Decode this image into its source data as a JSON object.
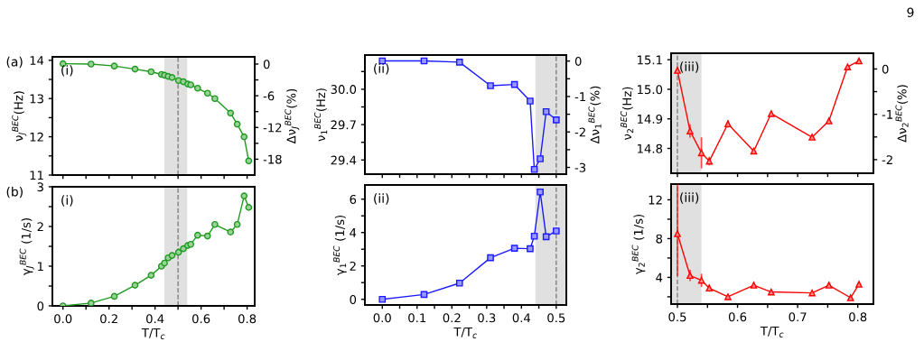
{
  "chart_data": [
    {
      "type": "line",
      "ylabel": "ν$_{J}$$^{BEC}$(Hz)",
      "y2label": "Δν$_{J}$$^{BEC}$(%)",
      "annotations": [
        "(a)",
        "(i)"
      ],
      "marker": "circle",
      "tick_labels": "y",
      "grid": false,
      "x": [
        0,
        0.122,
        0.223,
        0.313,
        0.383,
        0.428,
        0.441,
        0.457,
        0.474,
        0.502,
        0.523,
        0.542,
        0.555,
        0.585,
        0.628,
        0.66,
        0.728,
        0.757,
        0.787,
        0.807
      ],
      "series": [
        {
          "color": "#1e9a1e",
          "values": [
            13.91,
            13.9,
            13.85,
            13.77,
            13.7,
            13.63,
            13.61,
            13.58,
            13.55,
            13.47,
            13.44,
            13.38,
            13.36,
            13.27,
            13.14,
            13.0,
            12.62,
            12.33,
            12.0,
            11.37
          ]
        }
      ],
      "xlim": [
        -0.046,
        0.833
      ],
      "xticks": [
        0,
        0.1,
        0.2,
        0.3,
        0.4,
        0.5,
        0.6,
        0.7,
        0.8
      ],
      "ylim": [
        11,
        14.09
      ],
      "yticks": [
        11,
        {
          "value": 11.5,
          "label": null
        },
        12,
        {
          "value": 12.5,
          "label": null
        },
        13,
        {
          "value": 13.5,
          "label": null
        },
        14
      ],
      "y2lim": [
        -21.0,
        1.36
      ],
      "y2ticks": [
        0,
        {
          "value": -3,
          "label": null
        },
        -6,
        {
          "value": -9,
          "label": null
        },
        -12,
        {
          "value": -15,
          "label": null
        },
        -18
      ],
      "bands": [
        {
          "axis": "x",
          "from": 0.44,
          "to": 0.54,
          "color": "#e0e0e0"
        }
      ],
      "ref_lines": [
        {
          "axis": "x",
          "value": 0.5,
          "color": "#808080",
          "line_style": "dashed"
        }
      ]
    },
    {
      "type": "line",
      "ylabel": "ν$_{1}$$^{BEC}$(Hz)",
      "y2label": "Δν$_{1}$$^{BEC}$(%)",
      "annotations": [
        "(ii)"
      ],
      "marker": "square",
      "tick_labels": "y",
      "grid": false,
      "x": [
        0,
        0.12,
        0.222,
        0.311,
        0.38,
        0.425,
        0.437,
        0.454,
        0.471,
        0.5
      ],
      "series": [
        {
          "color": "#1a1aff",
          "values": [
            30.24,
            30.24,
            30.23,
            30.03,
            30.04,
            29.9,
            29.32,
            29.41,
            29.81,
            29.74
          ]
        }
      ],
      "xlim": [
        -0.05,
        0.529
      ],
      "xticks": [
        0,
        0.05,
        0.1,
        0.15,
        0.2,
        0.25,
        0.3,
        0.35,
        0.4,
        0.45,
        0.5
      ],
      "ylim": [
        29.28,
        30.29
      ],
      "yticks": [
        29.4,
        {
          "value": 29.55,
          "label": null
        },
        29.7,
        {
          "value": 29.85,
          "label": null
        },
        {
          "value": 30,
          "label": "30.0"
        },
        {
          "value": 30.15,
          "label": null
        }
      ],
      "y2lim": [
        -3.19,
        0.17
      ],
      "y2ticks": [
        0,
        {
          "value": -0.5,
          "label": null
        },
        -1,
        {
          "value": -1.5,
          "label": null
        },
        -2,
        {
          "value": -2.5,
          "label": null
        },
        -3
      ],
      "bands": [
        {
          "axis": "x",
          "from": 0.44,
          "to": 0.529,
          "color": "#e0e0e0"
        }
      ],
      "ref_lines": [
        {
          "axis": "x",
          "value": 0.5,
          "color": "#808080",
          "line_style": "dashed"
        }
      ]
    },
    {
      "type": "line",
      "ylabel": "ν$_{2}$$^{BEC}$(Hz)",
      "y2label": "Δν$_{2}$$^{BEC}$(%)",
      "annotations": [
        "9",
        "(iii)"
      ],
      "marker": "triangle",
      "tick_labels": "y",
      "grid": false,
      "x": [
        0.5,
        0.521,
        0.54,
        0.553,
        0.584,
        0.627,
        0.656,
        0.724,
        0.752,
        0.783,
        0.802
      ],
      "series": [
        {
          "color": "#ff0000",
          "values": [
            15.064,
            14.859,
            14.785,
            14.757,
            14.883,
            14.791,
            14.918,
            14.838,
            14.893,
            15.076,
            15.096
          ],
          "errors": [
            0.01,
            0.02,
            [
              14.735,
              14.835
            ],
            0.012,
            0.01,
            null,
            null,
            null,
            null,
            null,
            null
          ]
        }
      ],
      "xlim": [
        0.4895,
        0.826
      ],
      "xticks": [
        0.5,
        0.55,
        0.6,
        0.65,
        0.7,
        0.75,
        0.8
      ],
      "ylim": [
        14.716,
        15.122
      ],
      "yticks": [
        14.8,
        14.9,
        {
          "value": 15,
          "label": "15.0"
        },
        15.1
      ],
      "y2lim": [
        -2.3,
        0.347
      ],
      "y2ticks": [
        0,
        {
          "value": -0.5,
          "label": null
        },
        -1,
        {
          "value": -1.5,
          "label": null
        },
        -2
      ],
      "bands": [
        {
          "axis": "x",
          "from": 0.4895,
          "to": 0.54,
          "color": "#e0e0e0"
        }
      ],
      "ref_lines": [
        {
          "axis": "x",
          "value": 0.5,
          "color": "#808080",
          "line_style": "dashed"
        }
      ]
    },
    {
      "type": "line",
      "ylabel": "γ$_{J}$$^{BEC}$ (1/s)",
      "xlabel": "T/T$_{c}$",
      "annotations": [
        "(b)",
        "(i)"
      ],
      "marker": "circle",
      "grid": false,
      "x": [
        0,
        0.122,
        0.223,
        0.313,
        0.383,
        0.428,
        0.441,
        0.457,
        0.474,
        0.502,
        0.523,
        0.542,
        0.555,
        0.585,
        0.628,
        0.66,
        0.728,
        0.757,
        0.787,
        0.807
      ],
      "series": [
        {
          "color": "#1e9a1e",
          "values": [
            0.0,
            0.07,
            0.24,
            0.52,
            0.77,
            1.0,
            1.08,
            1.21,
            1.27,
            1.35,
            1.44,
            1.52,
            1.55,
            1.78,
            1.76,
            2.05,
            1.86,
            2.05,
            2.77,
            2.48
          ]
        }
      ],
      "xlim": [
        -0.046,
        0.833
      ],
      "xticks": [
        {
          "value": 0,
          "label": "0.0"
        },
        {
          "value": 0.1,
          "label": null
        },
        0.2,
        {
          "value": 0.3,
          "label": null
        },
        0.4,
        {
          "value": 0.5,
          "label": null
        },
        0.6,
        {
          "value": 0.7,
          "label": null
        },
        0.8
      ],
      "ylim": [
        0,
        3
      ],
      "yticks": [
        0,
        {
          "value": 0.5,
          "label": null
        },
        1,
        {
          "value": 1.5,
          "label": null
        },
        2,
        {
          "value": 2.5,
          "label": null
        },
        3
      ],
      "bands": [
        {
          "axis": "x",
          "from": 0.44,
          "to": 0.54,
          "color": "#e0e0e0"
        }
      ],
      "ref_lines": [
        {
          "axis": "x",
          "value": 0.5,
          "color": "#808080",
          "line_style": "dashed"
        }
      ]
    },
    {
      "type": "line",
      "ylabel": "γ$_{1}$$^{BEC}$ (1/s)",
      "xlabel": "T/T$_{c}$",
      "annotations": [
        "(ii)"
      ],
      "marker": "square",
      "grid": false,
      "x": [
        0,
        0.12,
        0.222,
        0.311,
        0.38,
        0.425,
        0.437,
        0.454,
        0.471,
        0.5
      ],
      "series": [
        {
          "color": "#1a1aff",
          "values": [
            0.0,
            0.29,
            0.97,
            2.49,
            3.06,
            3.03,
            3.78,
            6.43,
            3.75,
            4.09
          ]
        }
      ],
      "xlim": [
        -0.05,
        0.529
      ],
      "xticks": [
        {
          "value": 0,
          "label": "0.0"
        },
        {
          "value": 0.05,
          "label": null
        },
        0.1,
        {
          "value": 0.15,
          "label": null
        },
        0.2,
        {
          "value": 0.25,
          "label": null
        },
        0.3,
        {
          "value": 0.35,
          "label": null
        },
        0.4,
        {
          "value": 0.45,
          "label": null
        },
        0.5
      ],
      "ylim": [
        -0.34,
        6.85
      ],
      "yticks": [
        0,
        {
          "value": 1,
          "label": null
        },
        2,
        {
          "value": 3,
          "label": null
        },
        4,
        {
          "value": 5,
          "label": null
        },
        6
      ],
      "bands": [
        {
          "axis": "x",
          "from": 0.44,
          "to": 0.529,
          "color": "#e0e0e0"
        }
      ],
      "ref_lines": [
        {
          "axis": "x",
          "value": 0.5,
          "color": "#808080",
          "line_style": "dashed"
        }
      ]
    },
    {
      "type": "line",
      "ylabel": "γ$_{2}$$^{BEC}$ (1/s)",
      "xlabel": "T/T$_{c}$",
      "annotations": [
        "(iii)"
      ],
      "marker": "triangle",
      "grid": false,
      "x": [
        0.5,
        0.521,
        0.54,
        0.553,
        0.584,
        0.627,
        0.656,
        0.724,
        0.752,
        0.788,
        0.802
      ],
      "series": [
        {
          "color": "#ff0000",
          "values": [
            8.5,
            4.2,
            3.7,
            2.9,
            2.0,
            3.2,
            2.5,
            2.4,
            3.2,
            1.9,
            3.3
          ],
          "errors": [
            [
              4.2,
              13.5
            ],
            0.5,
            0.6,
            0.3,
            null,
            null,
            null,
            null,
            null,
            null,
            null
          ]
        }
      ],
      "xlim": [
        0.4895,
        0.826
      ],
      "xticks": [
        0.5,
        {
          "value": 0.55,
          "label": null
        },
        0.6,
        {
          "value": 0.65,
          "label": null
        },
        0.7,
        {
          "value": 0.75,
          "label": null
        },
        0.8
      ],
      "ylim": [
        1.25,
        13.62
      ],
      "yticks": [
        {
          "value": 2,
          "label": null
        },
        4,
        {
          "value": 6,
          "label": null
        },
        8,
        {
          "value": 10,
          "label": null
        },
        12
      ],
      "bands": [
        {
          "axis": "x",
          "from": 0.4895,
          "to": 0.54,
          "color": "#e0e0e0"
        }
      ],
      "ref_lines": [
        {
          "axis": "x",
          "value": 0.5,
          "color": "#808080",
          "line_style": "dashed"
        }
      ]
    }
  ]
}
